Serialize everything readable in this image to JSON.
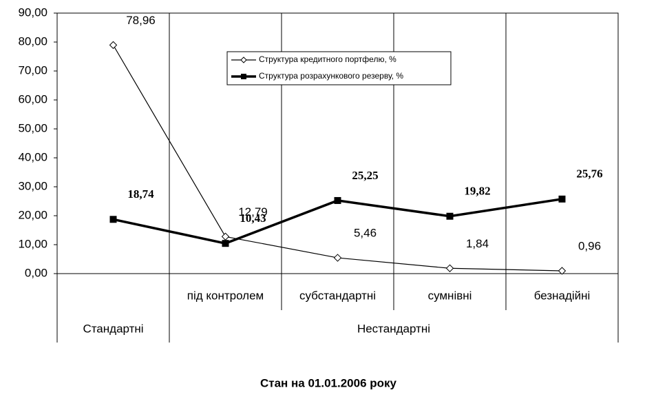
{
  "chart_data": {
    "type": "line",
    "title": "Стан на 01.01.2006 року",
    "categories": [
      null,
      "під контролем",
      "субстандартні",
      "сумнівні",
      "безнадійні"
    ],
    "category_groups": [
      {
        "label": "Стандартні",
        "span": 1
      },
      {
        "label": "Нестандартні",
        "span": 4
      }
    ],
    "series": [
      {
        "name": "Структура кредитного портфелю, %",
        "color": "#000000",
        "marker": "diamond",
        "line_width": 1.2,
        "values": [
          78.96,
          12.79,
          5.46,
          1.84,
          0.96
        ],
        "value_labels": [
          "78,96",
          "12,79",
          "5,46",
          "1,84",
          "0,96"
        ]
      },
      {
        "name": "Структура розрахункового резерву, %",
        "color": "#000000",
        "marker": "square",
        "line_width": 3.5,
        "values": [
          18.74,
          10.43,
          25.25,
          19.82,
          25.76
        ],
        "value_labels": [
          "18,74",
          "10,43",
          "25,25",
          "19,82",
          "25,76"
        ]
      }
    ],
    "ylim": [
      0,
      90
    ],
    "yticks": [
      {
        "value": 0,
        "label": "0,00"
      },
      {
        "value": 10,
        "label": "10,00"
      },
      {
        "value": 20,
        "label": "20,00"
      },
      {
        "value": 30,
        "label": "30,00"
      },
      {
        "value": 40,
        "label": "40,00"
      },
      {
        "value": 50,
        "label": "50,00"
      },
      {
        "value": 60,
        "label": "60,00"
      },
      {
        "value": 70,
        "label": "70,00"
      },
      {
        "value": 80,
        "label": "80,00"
      },
      {
        "value": 90,
        "label": "90,00"
      }
    ],
    "grid": false,
    "legend": "top-center"
  }
}
